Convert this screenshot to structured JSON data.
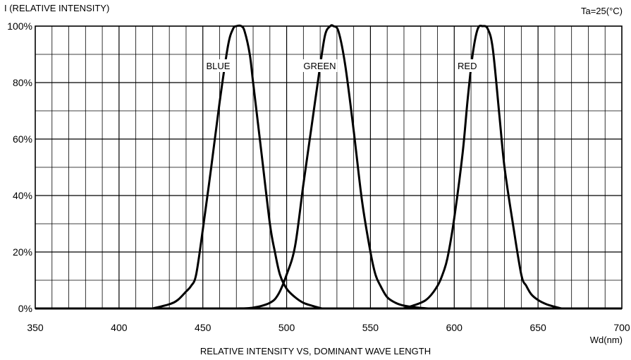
{
  "chart_data": {
    "type": "line",
    "title": "RELATIVE INTENSITY  VS, DOMINANT WAVE LENGTH",
    "ylabel": "I (RELATIVE INTENSITY)",
    "xlabel": "Wd(nm)",
    "condition": "Ta=25(°C)",
    "xlim": [
      350,
      700
    ],
    "ylim": [
      0,
      100
    ],
    "x_ticks": [
      350,
      400,
      450,
      500,
      550,
      600,
      650,
      700
    ],
    "y_ticks": [
      0,
      20,
      40,
      60,
      80,
      100
    ],
    "y_tick_labels": [
      "0%",
      "20%",
      "40%",
      "60%",
      "80%",
      "100%"
    ],
    "grid": true,
    "series": [
      {
        "name": "BLUE",
        "x": [
          420,
          430,
          435,
          440,
          443,
          446,
          450,
          455,
          460,
          465,
          468,
          470,
          473,
          475,
          478,
          480,
          485,
          490,
          493,
          496,
          500,
          505,
          510,
          515,
          521
        ],
        "y": [
          0,
          1.5,
          3,
          6,
          8,
          12,
          28,
          50,
          73,
          93,
          99,
          100,
          100,
          98,
          90,
          80,
          55,
          30,
          20,
          12,
          7,
          4,
          2,
          1,
          0
        ]
      },
      {
        "name": "GREEN",
        "x": [
          470,
          480,
          490,
          495,
          500,
          505,
          510,
          515,
          520,
          523,
          526,
          528,
          531,
          535,
          540,
          545,
          550,
          553,
          556,
          560,
          565,
          570,
          578,
          585
        ],
        "y": [
          0,
          0.3,
          2,
          5,
          12,
          22,
          44,
          65,
          86,
          97,
          100,
          100,
          98,
          86,
          63,
          38,
          20,
          12,
          8,
          4,
          2,
          1,
          0.3,
          0
        ]
      },
      {
        "name": "RED",
        "x": [
          570,
          580,
          585,
          590,
          593,
          596,
          600,
          605,
          608,
          611,
          614,
          617,
          620,
          623,
          627,
          630,
          635,
          640,
          643,
          646,
          650,
          655,
          660,
          664
        ],
        "y": [
          0,
          2,
          4,
          8,
          12,
          18,
          32,
          55,
          74,
          90,
          99,
          100,
          99,
          92,
          68,
          50,
          30,
          12,
          8,
          5,
          3,
          1.5,
          0.6,
          0
        ]
      }
    ],
    "series_labels": [
      {
        "text": "BLUE",
        "x": 452,
        "y": 85
      },
      {
        "text": "GREEN",
        "x": 510,
        "y": 85
      },
      {
        "text": "RED",
        "x": 602,
        "y": 85
      }
    ]
  }
}
